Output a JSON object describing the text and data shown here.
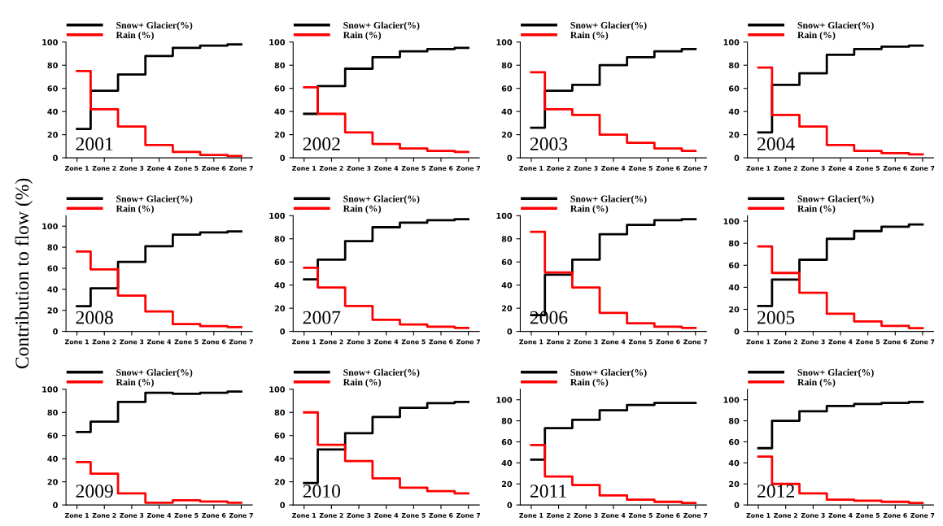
{
  "chart_data": [
    {
      "type": "step",
      "categories": [
        "Zone 1",
        "Zone 2",
        "Zone 3",
        "Zone 4",
        "Zone 5",
        "Zone 6",
        "Zone 7"
      ],
      "ylim": [
        0,
        100
      ],
      "yticks": [
        0,
        20,
        40,
        60,
        80,
        100
      ],
      "legend": "top left",
      "annotations": [
        "2001"
      ],
      "series": [
        {
          "name": "Snow+ Glacier(%)",
          "color": "#000000",
          "values": [
            25,
            58,
            72,
            88,
            95,
            97,
            98
          ]
        },
        {
          "name": "Rain (%)",
          "color": "#ff0000",
          "values": [
            75,
            42,
            27,
            11,
            5,
            2.5,
            1.5
          ]
        }
      ]
    },
    {
      "type": "step",
      "categories": [
        "Zone 1",
        "Zone 2",
        "Zone 3",
        "Zone 4",
        "Zone 5",
        "Zone 6",
        "Zone 7"
      ],
      "ylim": [
        0,
        100
      ],
      "yticks": [
        0,
        20,
        40,
        60,
        80,
        100
      ],
      "legend": "top left",
      "annotations": [
        "2002"
      ],
      "series": [
        {
          "name": "Snow+ Glacier(%)",
          "color": "#000000",
          "values": [
            38,
            62,
            77,
            87,
            92,
            94,
            95
          ]
        },
        {
          "name": "Rain (%)",
          "color": "#ff0000",
          "values": [
            61,
            38,
            22,
            12,
            8,
            6,
            5
          ]
        }
      ]
    },
    {
      "type": "step",
      "categories": [
        "Zone 1",
        "Zone 2",
        "Zone 3",
        "Zone 4",
        "Zone 5",
        "Zone 6",
        "Zone 7"
      ],
      "ylim": [
        0,
        100
      ],
      "yticks": [
        0,
        20,
        40,
        60,
        80,
        100
      ],
      "legend": "top left",
      "annotations": [
        "2003"
      ],
      "series": [
        {
          "name": "Snow+ Glacier(%)",
          "color": "#000000",
          "values": [
            26,
            58,
            63,
            80,
            87,
            92,
            94
          ]
        },
        {
          "name": "Rain (%)",
          "color": "#ff0000",
          "values": [
            74,
            42,
            37,
            20,
            13,
            8,
            6
          ]
        }
      ]
    },
    {
      "type": "step",
      "categories": [
        "Zone 1",
        "Zone 2",
        "Zone 3",
        "Zone 4",
        "Zone 5",
        "Zone 6",
        "Zone 7"
      ],
      "ylim": [
        0,
        100
      ],
      "yticks": [
        0,
        20,
        40,
        60,
        80,
        100
      ],
      "legend": "top left",
      "annotations": [
        "2004"
      ],
      "series": [
        {
          "name": "Snow+ Glacier(%)",
          "color": "#000000",
          "values": [
            22,
            63,
            73,
            89,
            94,
            96,
            97
          ]
        },
        {
          "name": "Rain (%)",
          "color": "#ff0000",
          "values": [
            78,
            37,
            27,
            11,
            6,
            4,
            3
          ]
        }
      ]
    },
    {
      "type": "step",
      "categories": [
        "Zone 1",
        "Zone 2",
        "Zone 3",
        "Zone 4",
        "Zone 5",
        "Zone 6",
        "Zone 7"
      ],
      "ylim": [
        0,
        110
      ],
      "yticks": [
        0,
        20,
        40,
        60,
        80,
        100
      ],
      "legend": "top left",
      "ylabel": "Contribution to flow (%)",
      "annotations": [
        "2008"
      ],
      "series": [
        {
          "name": "Snow+ Glacier(%)",
          "color": "#000000",
          "values": [
            24,
            41,
            66,
            81,
            92,
            94,
            95
          ]
        },
        {
          "name": "Rain (%)",
          "color": "#ff0000",
          "values": [
            76,
            59,
            34,
            19,
            7,
            5,
            4
          ]
        }
      ]
    },
    {
      "type": "step",
      "categories": [
        "Zone 1",
        "Zone 2",
        "Zone 3",
        "Zone 4",
        "Zone 5",
        "Zone 6",
        "Zone 7"
      ],
      "ylim": [
        0,
        100
      ],
      "yticks": [
        0,
        20,
        40,
        60,
        80,
        100
      ],
      "legend": "top left",
      "annotations": [
        "2007"
      ],
      "series": [
        {
          "name": "Snow+ Glacier(%)",
          "color": "#000000",
          "values": [
            45,
            62,
            78,
            90,
            94,
            96,
            97
          ]
        },
        {
          "name": "Rain (%)",
          "color": "#ff0000",
          "values": [
            55,
            38,
            22,
            10,
            6,
            4,
            3
          ]
        }
      ]
    },
    {
      "type": "step",
      "categories": [
        "Zone 1",
        "Zone 2",
        "Zone 3",
        "Zone 4",
        "Zone 5",
        "Zone 6",
        "Zone 7"
      ],
      "ylim": [
        0,
        100
      ],
      "yticks": [
        0,
        20,
        40,
        60,
        80,
        100
      ],
      "legend": "top left",
      "annotations": [
        "2006"
      ],
      "series": [
        {
          "name": "Snow+ Glacier(%)",
          "color": "#000000",
          "values": [
            14,
            49,
            62,
            84,
            92,
            96,
            97
          ]
        },
        {
          "name": "Rain (%)",
          "color": "#ff0000",
          "values": [
            86,
            51,
            38,
            16,
            7,
            4,
            3
          ]
        }
      ]
    },
    {
      "type": "step",
      "categories": [
        "Zone 1",
        "Zone 2",
        "Zone 3",
        "Zone 4",
        "Zone 5",
        "Zone 6",
        "Zone 7"
      ],
      "ylim": [
        0,
        105
      ],
      "yticks": [
        0,
        20,
        40,
        60,
        80,
        100
      ],
      "legend": "top left",
      "annotations": [
        "2005"
      ],
      "series": [
        {
          "name": "Snow+ Glacier(%)",
          "color": "#000000",
          "values": [
            23,
            47,
            65,
            84,
            91,
            95,
            97
          ]
        },
        {
          "name": "Rain (%)",
          "color": "#ff0000",
          "values": [
            77,
            53,
            35,
            16,
            9,
            5,
            3
          ]
        }
      ]
    },
    {
      "type": "step",
      "categories": [
        "Zone 1",
        "Zone 2",
        "Zone 3",
        "Zone 4",
        "Zone 5",
        "Zone 6",
        "Zone 7"
      ],
      "ylim": [
        0,
        100
      ],
      "yticks": [
        0,
        20,
        40,
        60,
        80,
        100
      ],
      "legend": "top left",
      "annotations": [
        "2009"
      ],
      "series": [
        {
          "name": "Snow+ Glacier(%)",
          "color": "#000000",
          "values": [
            63,
            72,
            89,
            97,
            96,
            97,
            98
          ]
        },
        {
          "name": "Rain (%)",
          "color": "#ff0000",
          "values": [
            37,
            27,
            10,
            2,
            4,
            3,
            2
          ]
        }
      ]
    },
    {
      "type": "step",
      "categories": [
        "Zone 1",
        "Zone 2",
        "Zone 3",
        "Zone 4",
        "Zone 5",
        "Zone 6",
        "Zone 7"
      ],
      "ylim": [
        0,
        100
      ],
      "yticks": [
        0,
        20,
        40,
        60,
        80,
        100
      ],
      "legend": "top left",
      "annotations": [
        "2010"
      ],
      "series": [
        {
          "name": "Snow+ Glacier(%)",
          "color": "#000000",
          "values": [
            19,
            48,
            62,
            76,
            84,
            88,
            89
          ]
        },
        {
          "name": "Rain (%)",
          "color": "#ff0000",
          "values": [
            80,
            52,
            38,
            23,
            15,
            12,
            10
          ]
        }
      ]
    },
    {
      "type": "step",
      "categories": [
        "Zone 1",
        "Zone 2",
        "Zone 3",
        "Zone 4",
        "Zone 5",
        "Zone 6",
        "Zone 7"
      ],
      "ylim": [
        0,
        110
      ],
      "yticks": [
        0,
        20,
        40,
        60,
        80,
        100
      ],
      "legend": "top left",
      "annotations": [
        "2011"
      ],
      "series": [
        {
          "name": "Snow+ Glacier(%)",
          "color": "#000000",
          "values": [
            43,
            73,
            81,
            90,
            95,
            97,
            97
          ]
        },
        {
          "name": "Rain (%)",
          "color": "#ff0000",
          "values": [
            57,
            27,
            19,
            9,
            5,
            3,
            2
          ]
        }
      ]
    },
    {
      "type": "step",
      "categories": [
        "Zone 1",
        "Zone 2",
        "Zone 3",
        "Zone 4",
        "Zone 5",
        "Zone 6",
        "Zone 7"
      ],
      "ylim": [
        0,
        110
      ],
      "yticks": [
        0,
        20,
        40,
        60,
        80,
        100
      ],
      "legend": "top left",
      "annotations": [
        "2012"
      ],
      "series": [
        {
          "name": "Snow+ Glacier(%)",
          "color": "#000000",
          "values": [
            54,
            80,
            89,
            94,
            96,
            97,
            98
          ]
        },
        {
          "name": "Rain (%)",
          "color": "#ff0000",
          "values": [
            46,
            20,
            11,
            5,
            4,
            3,
            2
          ]
        }
      ]
    }
  ]
}
